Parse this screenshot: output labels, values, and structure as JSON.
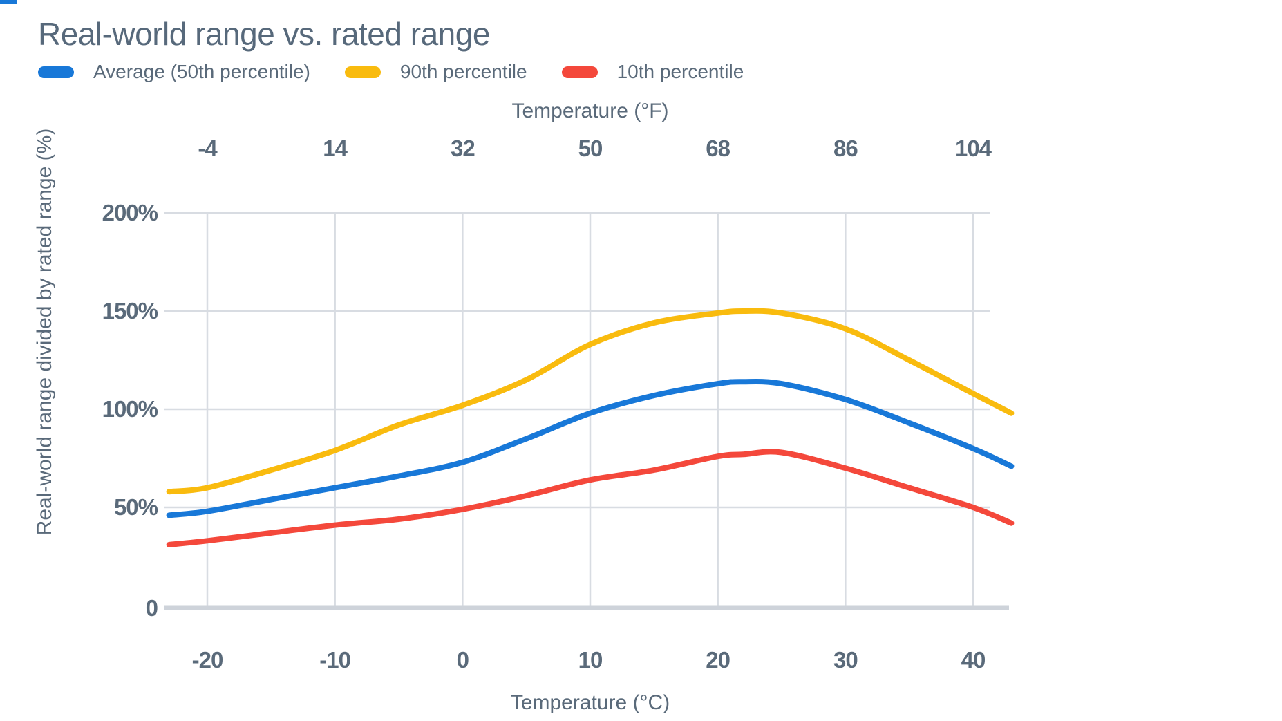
{
  "title": "Real-world range vs. rated range",
  "corner_mark_color": "#1878d8",
  "colors": {
    "blue": "#1878d8",
    "yellow": "#f9bb0e",
    "red": "#f4483b",
    "text": "#5a6a7a",
    "gridline": "#d8dce2",
    "axis_line": "#ced3da"
  },
  "legend": [
    {
      "label": "Average (50th percentile)",
      "color": "#1878d8"
    },
    {
      "label": "90th percentile",
      "color": "#f9bb0e"
    },
    {
      "label": "10th percentile",
      "color": "#f4483b"
    }
  ],
  "chart_data": {
    "type": "line",
    "title": "Real-world range vs. rated range",
    "grid": true,
    "legend_position": "top-left",
    "x_axis_bottom": {
      "label": "Temperature (°C)",
      "tick_values": [
        -20,
        -10,
        0,
        10,
        20,
        30,
        40
      ],
      "tick_labels": [
        "-20",
        "-10",
        "0",
        "10",
        "20",
        "30",
        "40"
      ]
    },
    "x_axis_top": {
      "label": "Temperature (°F)",
      "tick_labels": [
        "-4",
        "14",
        "32",
        "50",
        "68",
        "86",
        "104"
      ]
    },
    "y_axis": {
      "label": "Real-world range divided by rated range (%)",
      "tick_values": [
        200,
        150,
        100,
        50,
        0
      ],
      "tick_labels": [
        "200%",
        "150%",
        "100%",
        "50%",
        "0"
      ],
      "range": [
        0,
        200
      ]
    },
    "x_range_c": [
      -23,
      43
    ],
    "x": [
      -23,
      -20,
      -15,
      -10,
      -5,
      0,
      5,
      10,
      15,
      20,
      22,
      25,
      30,
      35,
      40,
      43
    ],
    "series": [
      {
        "name": "90th percentile",
        "color": "#f9bb0e",
        "values": [
          58,
          60,
          69,
          79,
          92,
          102,
          115,
          133,
          144,
          149,
          150,
          149,
          141,
          125,
          108,
          98
        ]
      },
      {
        "name": "Average (50th percentile)",
        "color": "#1878d8",
        "values": [
          46,
          48,
          54,
          60,
          66,
          73,
          85,
          98,
          107,
          113,
          114,
          113,
          105,
          93,
          80,
          71
        ]
      },
      {
        "name": "10th percentile",
        "color": "#f4483b",
        "values": [
          31,
          33,
          37,
          41,
          44,
          49,
          56,
          64,
          69,
          76,
          77,
          78,
          70,
          60,
          50,
          42
        ]
      }
    ]
  }
}
